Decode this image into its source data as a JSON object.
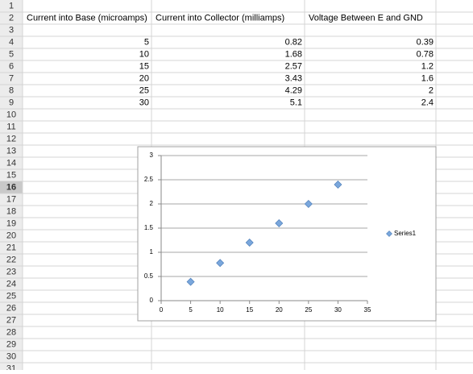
{
  "sheet": {
    "row_headers": [
      1,
      2,
      3,
      4,
      5,
      6,
      7,
      8,
      9,
      10,
      11,
      12,
      13,
      14,
      15,
      16,
      17,
      18,
      19,
      20,
      21,
      22,
      23,
      24,
      25,
      26,
      27,
      28,
      29,
      30,
      31
    ],
    "header_row": [
      "Current into Base (microamps)",
      "Current into Collector (milliamps)",
      "Voltage Between E and GND"
    ],
    "data_rows": [
      [
        5,
        0.82,
        0.39
      ],
      [
        10,
        1.68,
        0.78
      ],
      [
        15,
        2.57,
        1.2
      ],
      [
        20,
        3.43,
        1.6
      ],
      [
        25,
        4.29,
        2
      ],
      [
        30,
        5.1,
        2.4
      ]
    ]
  },
  "chart_data": {
    "type": "scatter",
    "x": [
      5,
      10,
      15,
      20,
      25,
      30
    ],
    "series": [
      {
        "name": "Series1",
        "color": "#7aa7dc",
        "values": [
          0.39,
          0.78,
          1.2,
          1.6,
          2,
          2.4
        ]
      }
    ],
    "xlim": [
      0,
      35
    ],
    "xticks": [
      0,
      5,
      10,
      15,
      20,
      25,
      30,
      35
    ],
    "ylim": [
      0,
      3
    ],
    "yticks": [
      0,
      0.5,
      1,
      1.5,
      2,
      2.5,
      3
    ],
    "grid": true,
    "legend": "right"
  }
}
